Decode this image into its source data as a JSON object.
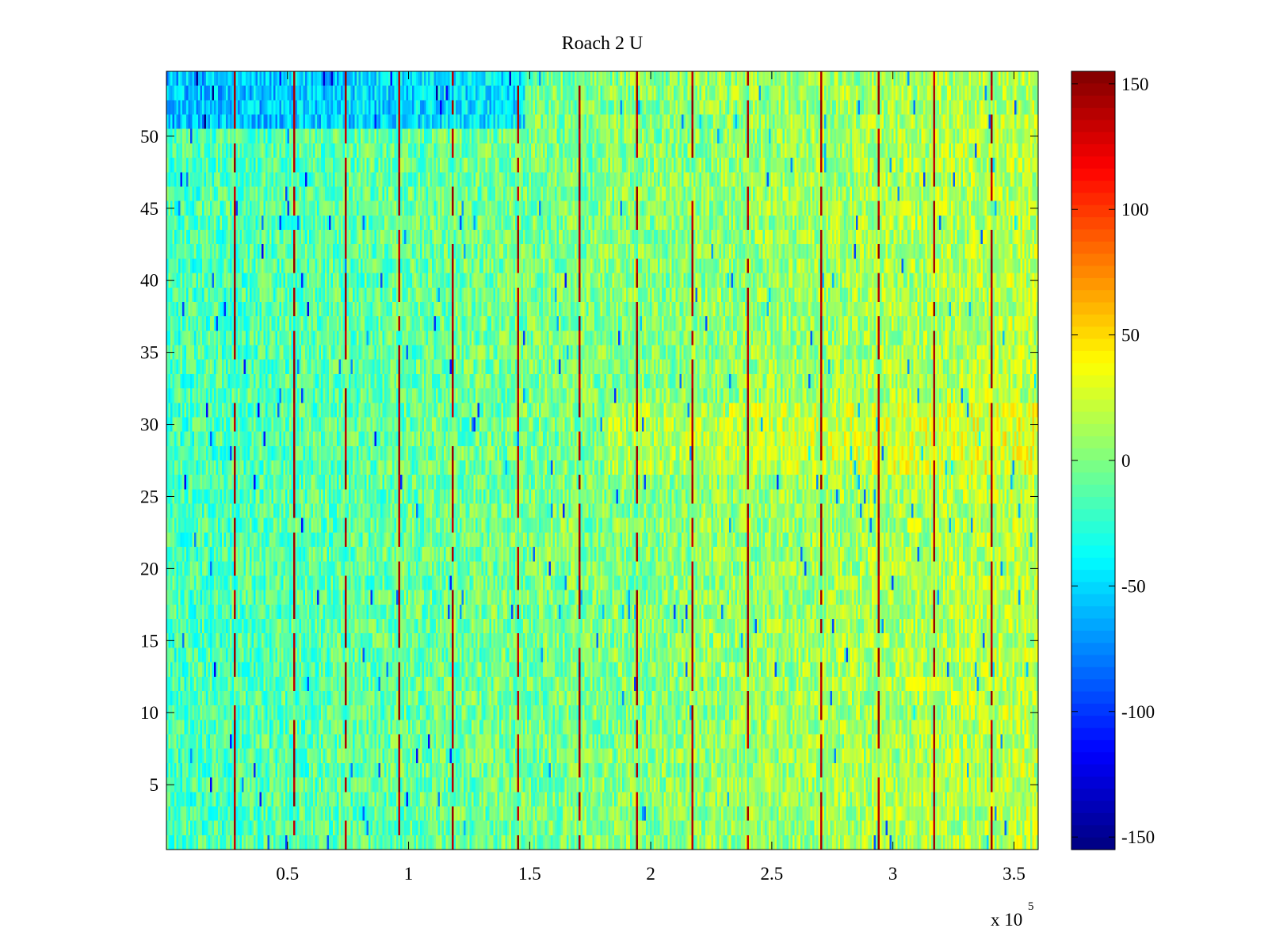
{
  "chart_data": {
    "type": "heatmap",
    "title": "Roach 2 U",
    "xlabel": "",
    "ylabel": "",
    "x_range": [
      0,
      360000
    ],
    "y_range": [
      0.5,
      54.5
    ],
    "x_ticks": [
      50000,
      100000,
      150000,
      200000,
      250000,
      300000,
      350000
    ],
    "x_tick_labels": [
      "0.5",
      "1",
      "1.5",
      "2",
      "2.5",
      "3",
      "3.5"
    ],
    "x_exponent_label": {
      "base": "x 10",
      "power": "5"
    },
    "y_ticks": [
      5,
      10,
      15,
      20,
      25,
      30,
      35,
      40,
      45,
      50
    ],
    "y_tick_labels": [
      "5",
      "10",
      "15",
      "20",
      "25",
      "30",
      "35",
      "40",
      "45",
      "50"
    ],
    "rows": 54,
    "colorbar": {
      "range": [
        -155,
        155
      ],
      "ticks": [
        150,
        100,
        50,
        0,
        -50,
        -100,
        -150
      ],
      "tick_labels": [
        "150",
        "100",
        "50",
        "0",
        "-50",
        "-100",
        "-150"
      ],
      "colormap": "jet"
    },
    "grid": false,
    "summary_values": {
      "left_region_mean": -18,
      "right_region_mean": 18,
      "top_rows_left_mean": -60,
      "spike_value": 150,
      "spike_x_positions": [
        28000,
        52000,
        74000,
        96000,
        118000,
        145000,
        170000,
        194000,
        217000,
        240000,
        270000,
        294000,
        317000,
        340000
      ]
    }
  }
}
